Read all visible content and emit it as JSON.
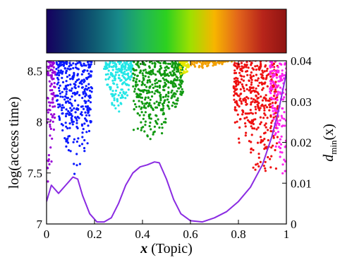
{
  "chart_data": {
    "type": "scatter",
    "title": "",
    "colorbar": {
      "orientation": "horizontal",
      "position": "top",
      "gradient_stops": [
        "#160060",
        "#0b2d63",
        "#0f5a72",
        "#178a8a",
        "#21b55a",
        "#2dd11f",
        "#9ee000",
        "#f7b500",
        "#e2641b",
        "#b8251a",
        "#8f1412"
      ]
    },
    "x_axis": {
      "label_math": "x",
      "label_text": "(Topic)",
      "range": [
        0,
        1
      ],
      "ticks": [
        0,
        0.2,
        0.4,
        0.6,
        0.8,
        1
      ],
      "tick_labels": [
        "0",
        "0.2",
        "0.4",
        "0.6",
        "0.8",
        "1"
      ]
    },
    "y_axis_left": {
      "label": "log(access time)",
      "range": [
        7.0,
        8.6
      ],
      "ticks": [
        7,
        7.5,
        8,
        8.5
      ],
      "tick_labels": [
        "7",
        "7.5",
        "8",
        "8.5"
      ]
    },
    "y_axis_right": {
      "label_base": "d",
      "label_sub": "min",
      "label_arg": "(x)",
      "range": [
        0,
        0.04
      ],
      "ticks": [
        0,
        0.01,
        0.02,
        0.03,
        0.04
      ],
      "tick_labels": [
        "0",
        "0.01",
        "0.02",
        "0.03",
        "0.04"
      ]
    },
    "scatter_groups": [
      {
        "color": "#9900d8",
        "x_range": [
          0.0,
          0.038
        ],
        "center": 0.0,
        "bottom": 7.3,
        "spread": 0.9
      },
      {
        "color": "#0a1aff",
        "x_range": [
          0.04,
          0.19
        ],
        "center": 0.12,
        "bottom": 7.45,
        "spread": 0.55
      },
      {
        "color": "#22e6e6",
        "x_range": [
          0.24,
          0.36
        ],
        "center": 0.3,
        "bottom": 8.05,
        "spread": 0.45
      },
      {
        "color": "#119911",
        "x_range": [
          0.36,
          0.57
        ],
        "center": 0.43,
        "bottom": 7.77,
        "spread": 0.5
      },
      {
        "color": "#e8e800",
        "x_range": [
          0.555,
          0.6
        ],
        "center": 0.57,
        "bottom": 8.42,
        "spread": 0.2
      },
      {
        "color": "#f2a000",
        "x_range": [
          0.6,
          0.8
        ],
        "center": 0.66,
        "bottom": 8.52,
        "spread": 0.1
      },
      {
        "color": "#ee1111",
        "x_range": [
          0.78,
          0.965
        ],
        "center": 0.93,
        "bottom": 7.4,
        "spread": 0.55
      },
      {
        "color": "#ff22ee",
        "x_range": [
          0.93,
          1.0
        ],
        "center": 1.0,
        "bottom": 7.3,
        "spread": 0.9
      }
    ],
    "line_series": {
      "axis": "right",
      "color": "#8a2be2",
      "x": [
        0.0,
        0.02,
        0.05,
        0.08,
        0.11,
        0.13,
        0.15,
        0.18,
        0.21,
        0.24,
        0.27,
        0.3,
        0.33,
        0.36,
        0.39,
        0.42,
        0.45,
        0.47,
        0.5,
        0.53,
        0.56,
        0.6,
        0.65,
        0.7,
        0.75,
        0.8,
        0.85,
        0.9,
        0.94,
        0.97,
        1.0
      ],
      "y": [
        0.0055,
        0.0095,
        0.0075,
        0.0095,
        0.0115,
        0.011,
        0.007,
        0.0025,
        0.0005,
        0.0005,
        0.0015,
        0.005,
        0.0095,
        0.0125,
        0.014,
        0.0145,
        0.0152,
        0.015,
        0.011,
        0.006,
        0.0025,
        0.0008,
        0.0005,
        0.0015,
        0.003,
        0.0055,
        0.009,
        0.0145,
        0.0215,
        0.0285,
        0.037
      ]
    },
    "grid": false,
    "legend": "none"
  }
}
